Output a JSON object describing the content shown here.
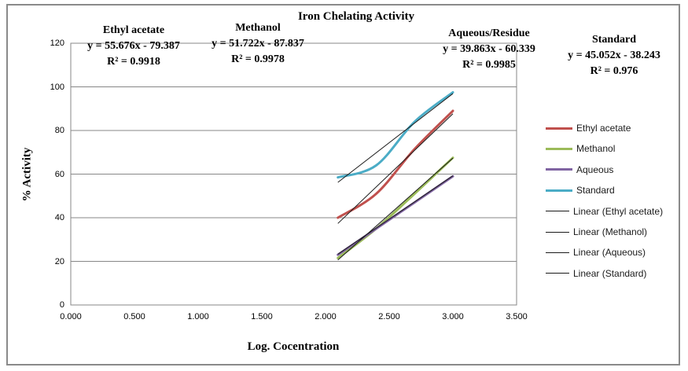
{
  "title": "Iron Chelating Activity",
  "axes": {
    "x_label": "Log. Cocentration",
    "y_label": "% Activity",
    "x_ticks": [
      "0.000",
      "0.500",
      "1.000",
      "1.500",
      "2.000",
      "2.500",
      "3.000",
      "3.500"
    ],
    "y_ticks": [
      "0",
      "20",
      "40",
      "60",
      "80",
      "100",
      "120"
    ]
  },
  "annotations": [
    {
      "name": "Ethyl acetate",
      "equation": "y = 55.676x - 79.387",
      "r2": "R² = 0.9918"
    },
    {
      "name": "Methanol",
      "equation": "y = 51.722x - 87.837",
      "r2": "R² = 0.9978"
    },
    {
      "name": "Aqueous/Residue",
      "equation": "y = 39.863x - 60.339",
      "r2": "R² = 0.9985"
    },
    {
      "name": "Standard",
      "equation": "y = 45.052x - 38.243",
      "r2": "R² = 0.976"
    }
  ],
  "chart_data": {
    "type": "line",
    "title": "Iron Chelating Activity",
    "xlabel": "Log. Cocentration",
    "ylabel": "% Activity",
    "xlim": [
      0,
      3.5
    ],
    "ylim": [
      0,
      120
    ],
    "x_tick_step": 0.5,
    "y_tick_step": 20,
    "grid": "horizontal",
    "legend_position": "right",
    "x": [
      2.097,
      2.398,
      2.699,
      3.0
    ],
    "series": [
      {
        "name": "Ethyl acetate",
        "color": "#C0504D",
        "values": [
          40,
          51,
          71.5,
          89
        ],
        "trend": {
          "slope": 55.676,
          "intercept": -79.387,
          "r2": 0.9918
        }
      },
      {
        "name": "Methanol",
        "color": "#9BBB59",
        "values": [
          21.5,
          35,
          51,
          67.5
        ],
        "trend": {
          "slope": 51.722,
          "intercept": -87.837,
          "r2": 0.9978
        }
      },
      {
        "name": "Aqueous",
        "color": "#8064A2",
        "values": [
          23,
          35,
          47,
          59
        ],
        "trend": {
          "slope": 39.863,
          "intercept": -60.339,
          "r2": 0.9985
        }
      },
      {
        "name": "Standard",
        "color": "#4BACC6",
        "values": [
          58.5,
          64,
          84,
          97.5
        ],
        "trend": {
          "slope": 45.052,
          "intercept": -38.243,
          "r2": 0.976
        }
      }
    ],
    "legend": [
      {
        "label": "Ethyl acetate",
        "style": "series",
        "color": "#C0504D"
      },
      {
        "label": "Methanol",
        "style": "series",
        "color": "#9BBB59"
      },
      {
        "label": "Aqueous",
        "style": "series",
        "color": "#8064A2"
      },
      {
        "label": "Standard",
        "style": "series",
        "color": "#4BACC6"
      },
      {
        "label": "Linear (Ethyl acetate)",
        "style": "linear",
        "color": "#1a1a1a"
      },
      {
        "label": "Linear (Methanol)",
        "style": "linear",
        "color": "#1a1a1a"
      },
      {
        "label": "Linear (Aqueous)",
        "style": "linear",
        "color": "#1a1a1a"
      },
      {
        "label": "Linear (Standard)",
        "style": "linear",
        "color": "#1a1a1a"
      }
    ]
  },
  "colors": {
    "frame_border": "#8a8a8a",
    "gridline": "#878787",
    "plot_border": "#878787",
    "trendline": "#1a1a1a",
    "background": "#ffffff"
  }
}
